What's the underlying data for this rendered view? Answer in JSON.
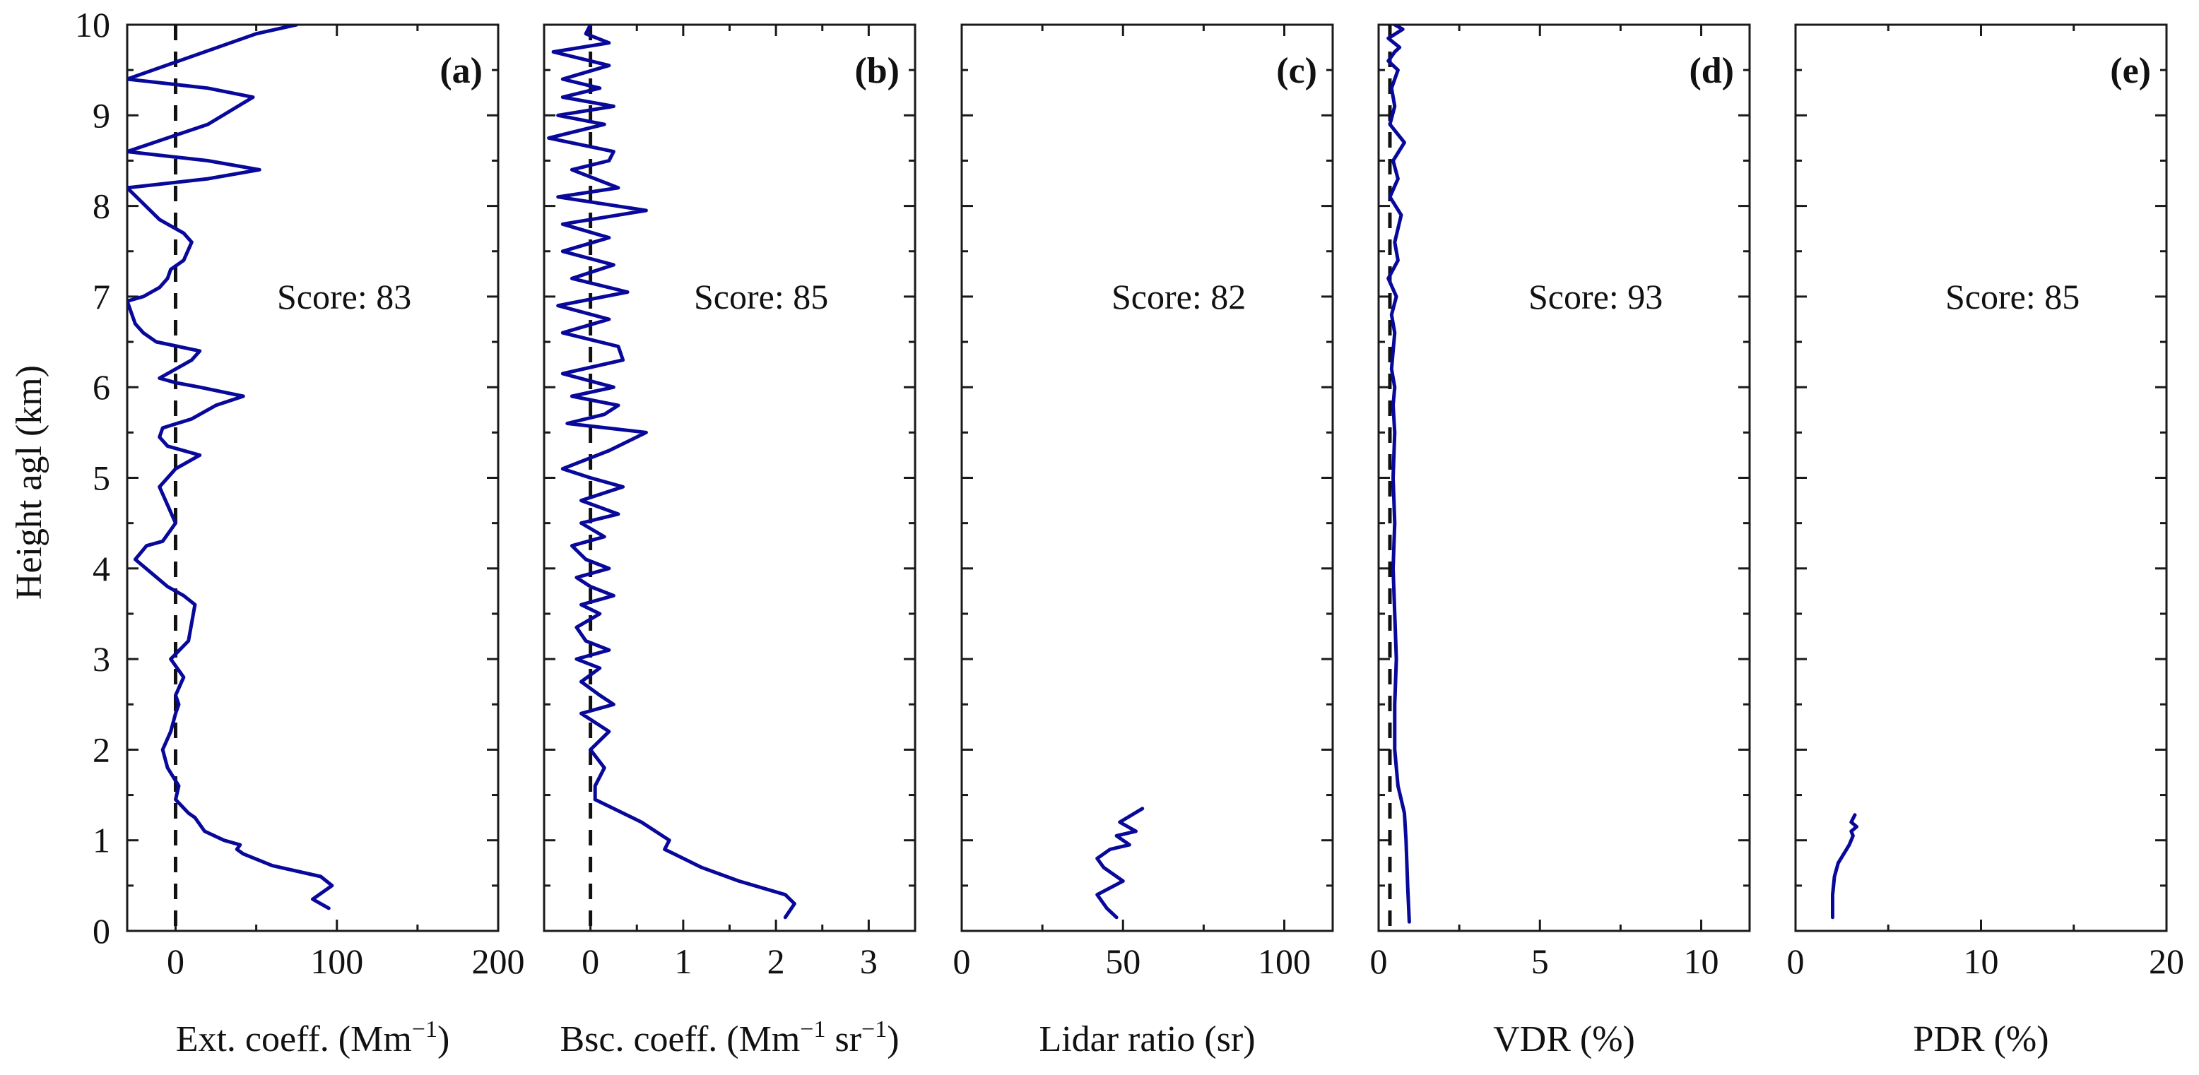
{
  "figure": {
    "ylabel": "Height agl (km)",
    "ylim": [
      0,
      10
    ],
    "yticks": [
      "0",
      "1",
      "2",
      "3",
      "4",
      "5",
      "6",
      "7",
      "8",
      "9",
      "10"
    ]
  },
  "chart_data": [
    {
      "type": "line",
      "panel": "(a)",
      "score": "Score: 83",
      "xlabel": {
        "prefix": "Ext. coeff. (Mm",
        "sup": "−1",
        "suffix": ")"
      },
      "xlim": [
        -30,
        200
      ],
      "xticks": [
        0,
        100,
        200
      ],
      "xtick_labels": [
        "0",
        "100",
        "200"
      ],
      "zero_line": true,
      "series": [
        {
          "name": "Ext. coeff.",
          "x": [
            95,
            85,
            97,
            90,
            60,
            42,
            38,
            40,
            30,
            18,
            12,
            8,
            0,
            2,
            -5,
            -8,
            -3,
            0,
            2,
            0,
            5,
            -3,
            8,
            10,
            12,
            5,
            -5,
            -15,
            -25,
            -18,
            -8,
            0,
            -5,
            -10,
            0,
            15,
            -5,
            -10,
            -8,
            10,
            25,
            42,
            15,
            0,
            -10,
            10,
            15,
            -12,
            -20,
            -25,
            -30,
            -20,
            -10,
            -5,
            -3,
            5,
            10,
            5,
            0,
            -5,
            -10,
            -30,
            20,
            52,
            20,
            -30,
            20,
            48,
            20,
            -30,
            50,
            75
          ],
          "y": [
            0.25,
            0.35,
            0.5,
            0.6,
            0.72,
            0.85,
            0.9,
            0.95,
            1.0,
            1.1,
            1.25,
            1.3,
            1.45,
            1.6,
            1.8,
            2.0,
            2.2,
            2.4,
            2.5,
            2.6,
            2.8,
            3.0,
            3.2,
            3.4,
            3.6,
            3.7,
            3.8,
            3.95,
            4.1,
            4.25,
            4.3,
            4.5,
            4.7,
            4.9,
            5.1,
            5.25,
            5.35,
            5.45,
            5.55,
            5.65,
            5.8,
            5.9,
            6.0,
            6.05,
            6.1,
            6.3,
            6.4,
            6.5,
            6.6,
            6.7,
            6.95,
            7.0,
            7.1,
            7.2,
            7.3,
            7.4,
            7.6,
            7.7,
            7.75,
            7.8,
            7.85,
            8.2,
            8.3,
            8.4,
            8.5,
            8.6,
            8.9,
            9.2,
            9.3,
            9.4,
            9.9,
            10.0
          ]
        }
      ]
    },
    {
      "type": "line",
      "panel": "(b)",
      "score": "Score: 85",
      "xlabel": {
        "prefix": "Bsc. coeff. (Mm",
        "sup": "−1",
        "mid": " sr",
        "sup2": "−1",
        "suffix": ")"
      },
      "xlim": [
        -0.5,
        3.5
      ],
      "xticks": [
        0,
        1,
        2,
        3
      ],
      "xtick_labels": [
        "0",
        "1",
        "2",
        "3"
      ],
      "zero_line": true,
      "series": [
        {
          "name": "Bsc. coeff.",
          "x": [
            2.1,
            2.2,
            2.1,
            1.6,
            1.2,
            0.9,
            0.8,
            0.85,
            0.55,
            0.25,
            0.05,
            0.05,
            0.15,
            0.0,
            0.2,
            -0.1,
            0.25,
            0.1,
            -0.1,
            0.1,
            -0.15,
            0.2,
            -0.05,
            -0.15,
            0.1,
            -0.1,
            0.25,
            0.0,
            -0.15,
            0.2,
            -0.05,
            -0.2,
            0.15,
            -0.1,
            0.3,
            -0.1,
            0.35,
            0.0,
            -0.3,
            0.2,
            0.6,
            -0.25,
            0.15,
            0.3,
            -0.2,
            0.25,
            -0.3,
            0.35,
            0.3,
            -0.3,
            0.2,
            -0.35,
            0.4,
            -0.2,
            0.25,
            -0.3,
            0.2,
            -0.3,
            0.6,
            -0.35,
            0.3,
            -0.2,
            0.2,
            0.25,
            -0.45,
            0.15,
            -0.35,
            0.25,
            -0.3,
            0.1,
            -0.3,
            0.2,
            -0.4,
            0.2,
            -0.05,
            0.0
          ],
          "y": [
            0.15,
            0.3,
            0.4,
            0.55,
            0.7,
            0.85,
            0.9,
            1.0,
            1.2,
            1.35,
            1.45,
            1.6,
            1.8,
            2.0,
            2.2,
            2.4,
            2.5,
            2.6,
            2.75,
            2.9,
            3.0,
            3.1,
            3.2,
            3.35,
            3.5,
            3.6,
            3.7,
            3.8,
            3.9,
            4.0,
            4.1,
            4.25,
            4.35,
            4.5,
            4.6,
            4.75,
            4.9,
            5.0,
            5.1,
            5.3,
            5.5,
            5.6,
            5.7,
            5.8,
            5.9,
            6.0,
            6.15,
            6.3,
            6.45,
            6.6,
            6.75,
            6.9,
            7.05,
            7.2,
            7.35,
            7.5,
            7.65,
            7.8,
            7.95,
            8.1,
            8.2,
            8.4,
            8.5,
            8.6,
            8.75,
            8.9,
            9.0,
            9.1,
            9.2,
            9.3,
            9.4,
            9.55,
            9.7,
            9.8,
            9.9,
            10.0
          ]
        }
      ]
    },
    {
      "type": "line",
      "panel": "(c)",
      "score": "Score: 82",
      "xlabel": {
        "prefix": "Lidar ratio (sr)"
      },
      "xlim": [
        0,
        115
      ],
      "xticks": [
        0,
        50,
        100
      ],
      "xtick_labels": [
        "0",
        "50",
        "100"
      ],
      "zero_line": false,
      "series": [
        {
          "name": "Lidar ratio",
          "x": [
            48,
            45,
            42,
            50,
            44,
            42,
            46,
            52,
            48,
            54,
            49,
            56
          ],
          "y": [
            0.15,
            0.25,
            0.4,
            0.55,
            0.7,
            0.8,
            0.9,
            0.95,
            1.05,
            1.1,
            1.2,
            1.35
          ]
        }
      ]
    },
    {
      "type": "line",
      "panel": "(d)",
      "score": "Score: 93",
      "xlabel": {
        "prefix": "VDR (%)"
      },
      "xlim": [
        0,
        11.5
      ],
      "xticks": [
        0,
        5,
        10
      ],
      "xtick_labels": [
        "0",
        "5",
        "10"
      ],
      "zero_line": true,
      "zero_line_x": 0.35,
      "series": [
        {
          "name": "VDR",
          "x": [
            0.95,
            0.9,
            0.85,
            0.8,
            0.7,
            0.6,
            0.5,
            0.5,
            0.55,
            0.5,
            0.45,
            0.5,
            0.45,
            0.5,
            0.45,
            0.5,
            0.4,
            0.45,
            0.5,
            0.4,
            0.55,
            0.3,
            0.6,
            0.5,
            0.7,
            0.35,
            0.6,
            0.45,
            0.8,
            0.35,
            0.5,
            0.4,
            0.6,
            0.3,
            0.5,
            0.65,
            0.3,
            0.75,
            0.5
          ],
          "y": [
            0.1,
            0.5,
            1.0,
            1.3,
            1.45,
            1.6,
            2.0,
            2.5,
            3.0,
            3.5,
            4.0,
            4.5,
            5.0,
            5.5,
            5.8,
            6.0,
            6.2,
            6.4,
            6.6,
            6.8,
            7.0,
            7.2,
            7.4,
            7.6,
            7.9,
            8.1,
            8.3,
            8.5,
            8.7,
            8.9,
            9.1,
            9.3,
            9.5,
            9.6,
            9.7,
            9.75,
            9.85,
            9.95,
            10.0
          ]
        }
      ]
    },
    {
      "type": "line",
      "panel": "(e)",
      "score": "Score: 85",
      "xlabel": {
        "prefix": "PDR (%)"
      },
      "xlim": [
        0,
        20
      ],
      "xticks": [
        0,
        10,
        20
      ],
      "xtick_labels": [
        "0",
        "10",
        "20"
      ],
      "zero_line": false,
      "series": [
        {
          "name": "PDR",
          "x": [
            2.0,
            2.0,
            2.1,
            2.3,
            2.6,
            2.9,
            3.1,
            3.0,
            3.3,
            3.0,
            3.2
          ],
          "y": [
            0.15,
            0.4,
            0.6,
            0.75,
            0.85,
            0.95,
            1.05,
            1.1,
            1.15,
            1.2,
            1.28
          ]
        }
      ]
    }
  ]
}
